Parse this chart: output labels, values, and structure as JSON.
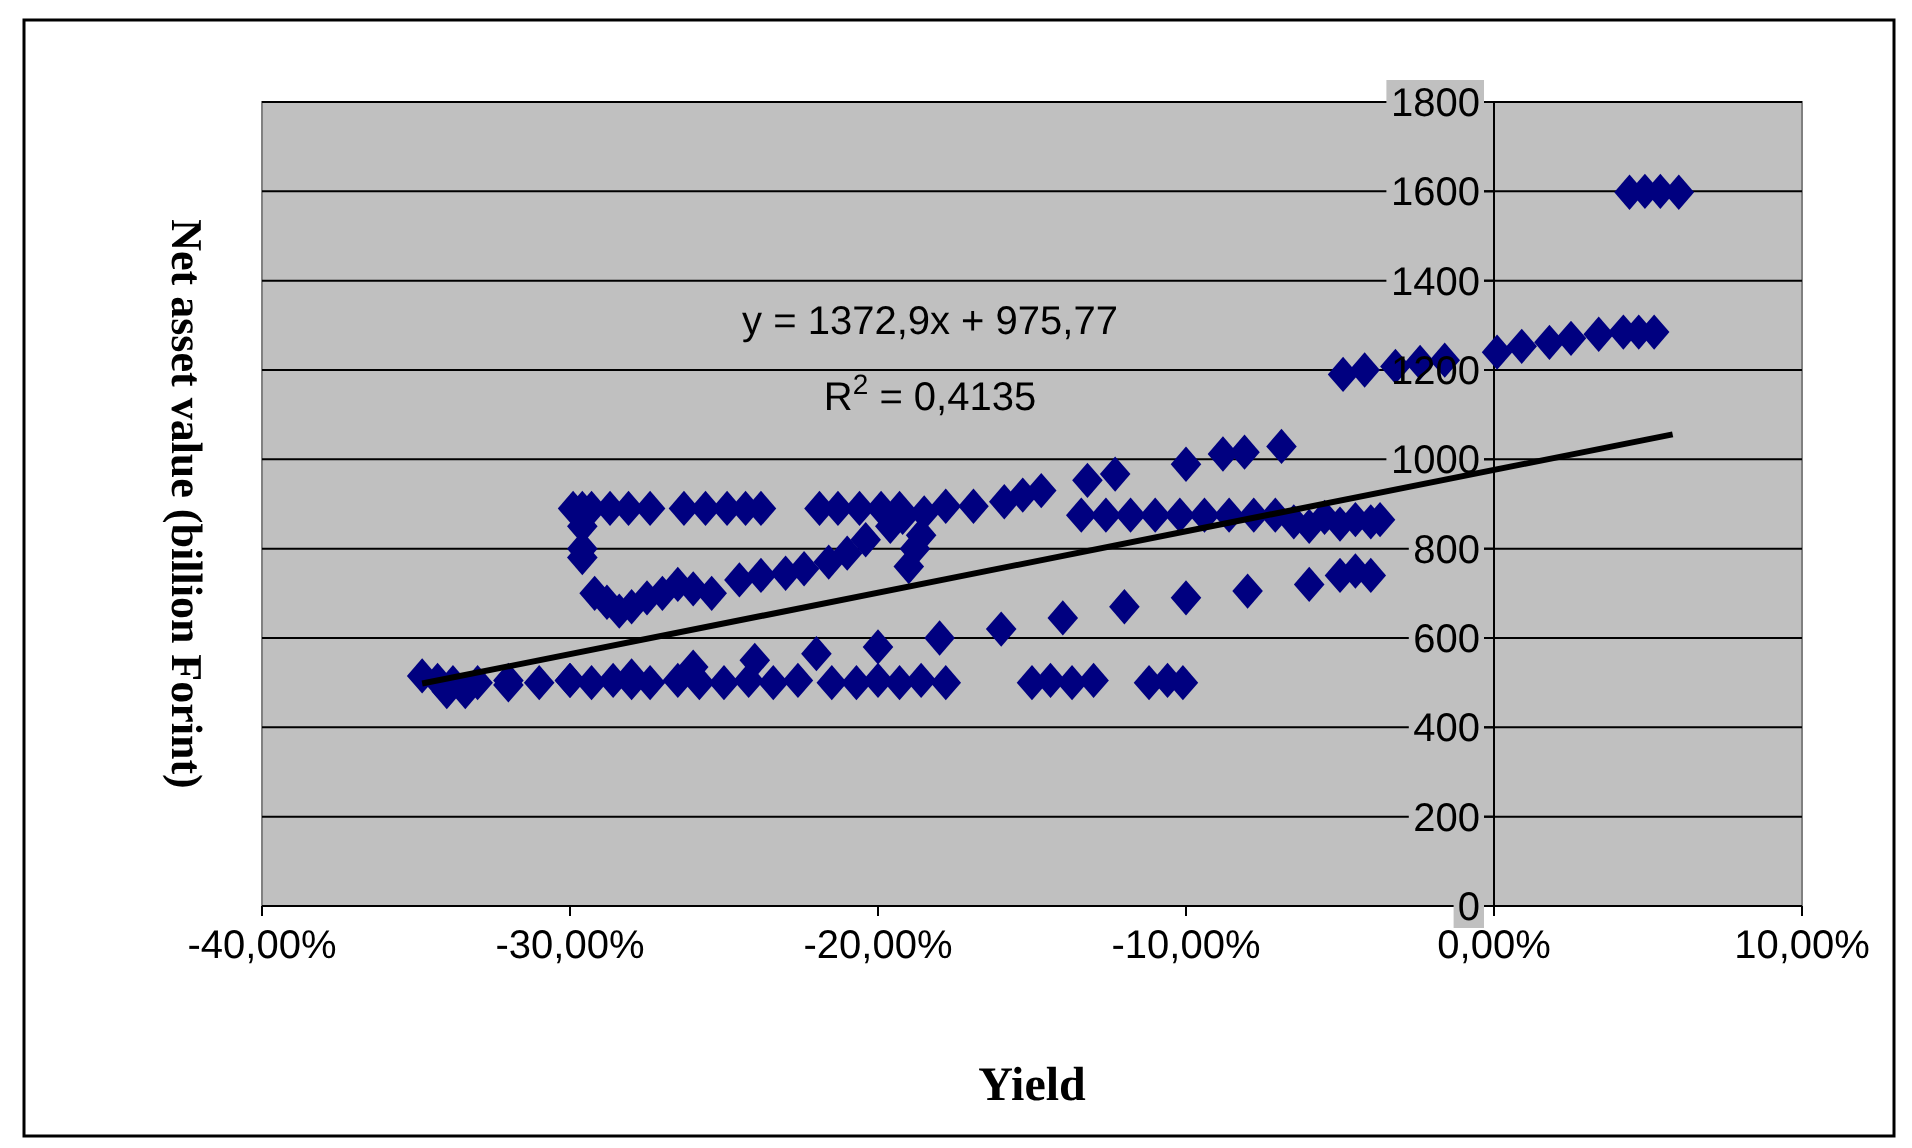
{
  "chart_data": {
    "type": "scatter",
    "xlabel": "Yield",
    "ylabel": "Net asset value (billion Forint)",
    "annotations": [
      "y = 1372,9x + 975,77",
      "R$^{2}$ = 0,4135"
    ],
    "xlim": [
      -40,
      10
    ],
    "ylim": [
      0,
      1800
    ],
    "xticks": [
      {
        "value": -40,
        "label": "-40,00%"
      },
      {
        "value": -30,
        "label": "-30,00%"
      },
      {
        "value": -20,
        "label": "-20,00%"
      },
      {
        "value": -10,
        "label": "-10,00%"
      },
      {
        "value": 0,
        "label": "0,00%"
      },
      {
        "value": 10,
        "label": "10,00%"
      }
    ],
    "yticks": [
      0,
      200,
      400,
      600,
      800,
      1000,
      1200,
      1400,
      1600,
      1800
    ],
    "grid": "y",
    "marker": "diamond",
    "series": [
      {
        "color": "#000080",
        "x": [
          -34.8,
          -34.3,
          -33.8,
          -33,
          -32,
          -31,
          -30,
          -29.3,
          -28.6,
          -28,
          -27.4,
          -26.5,
          -25.8,
          -25,
          -24.2,
          -23.4,
          -22.6,
          -21.5,
          -20.7,
          -20,
          -19.3,
          -18.6,
          -17.8,
          -15,
          -14.4,
          -13.7,
          -13,
          -11.2,
          -10.6,
          -10.1,
          -34,
          -33.4,
          -32,
          -30,
          -28,
          -26,
          -24,
          -22,
          -20,
          -18,
          -16,
          -14,
          -12,
          -10,
          -8,
          -6,
          -5,
          -4.5,
          -4,
          -29.6,
          -29.6,
          -29.6,
          -29.6,
          -29.2,
          -28.8,
          -28.4,
          -28,
          -27.5,
          -27,
          -26.5,
          -26,
          -25.4,
          -24.5,
          -23.8,
          -23,
          -22.4,
          -21.6,
          -21,
          -20.4,
          -19.6,
          -19,
          -18.8,
          -18.6,
          -19.2,
          -18.5,
          -29.9,
          -29.3,
          -28.7,
          -28.1,
          -27.4,
          -26.3,
          -25.6,
          -24.9,
          -24.3,
          -23.8,
          -21.9,
          -21.3,
          -20.6,
          -19.9,
          -19.3,
          -17.8,
          -16.9,
          -15.9,
          -15.3,
          -14.7,
          -13.4,
          -12.6,
          -11.8,
          -11,
          -10.2,
          -9.4,
          -8.6,
          -7.8,
          -7.1,
          -6.5,
          -6,
          -5.5,
          -5,
          -4.5,
          -4,
          -3.7,
          -13.2,
          -12.3,
          -10,
          -8.8,
          -8.1,
          -6.9,
          -4.9,
          -4.2,
          -3.2,
          -2.4,
          -1.6,
          0.1,
          0.9,
          1.8,
          2.5,
          3.4,
          4.2,
          4.7,
          5.2,
          4.4,
          4.9,
          5.4,
          6
        ],
        "values": [
          515,
          505,
          500,
          500,
          505,
          500,
          505,
          500,
          505,
          500,
          500,
          505,
          500,
          500,
          505,
          500,
          505,
          500,
          500,
          505,
          500,
          505,
          500,
          500,
          505,
          500,
          505,
          500,
          505,
          500,
          480,
          480,
          495,
          505,
          515,
          535,
          550,
          565,
          580,
          600,
          620,
          645,
          670,
          690,
          705,
          720,
          740,
          750,
          740,
          890,
          850,
          800,
          780,
          700,
          680,
          660,
          670,
          690,
          700,
          720,
          710,
          700,
          730,
          740,
          745,
          755,
          770,
          790,
          820,
          850,
          760,
          800,
          830,
          870,
          880,
          890,
          890,
          890,
          890,
          890,
          890,
          890,
          890,
          890,
          890,
          890,
          890,
          890,
          890,
          890,
          895,
          895,
          905,
          920,
          930,
          875,
          875,
          875,
          875,
          875,
          875,
          875,
          875,
          875,
          860,
          850,
          870,
          855,
          865,
          860,
          865,
          953,
          967,
          989,
          1012,
          1016,
          1029,
          1190,
          1200,
          1208,
          1217,
          1222,
          1240,
          1253,
          1262,
          1271,
          1280,
          1285,
          1285,
          1285,
          1598,
          1600,
          1600,
          1598
        ]
      },
      {
        "type": "line",
        "color": "#000000",
        "marker": "none",
        "x": [
          -34.8,
          5.8
        ],
        "values": [
          498,
          1056
        ]
      }
    ]
  }
}
